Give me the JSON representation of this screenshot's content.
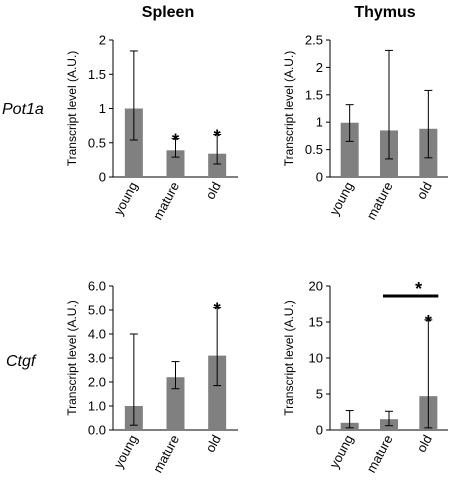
{
  "columns": [
    "Spleen",
    "Thymus"
  ],
  "rows": [
    "Pot1a",
    "Ctgf"
  ],
  "chart_data": [
    {
      "type": "bar",
      "column": "Spleen",
      "row": "Pot1a",
      "categories": [
        "young",
        "mature",
        "old"
      ],
      "values": [
        1.0,
        0.39,
        0.34
      ],
      "error_upper": [
        1.84,
        0.56,
        0.62
      ],
      "error_lower": [
        0.54,
        0.29,
        0.19
      ],
      "ylabel": "Transcript level (A.U.)",
      "ylim": [
        0,
        2
      ],
      "yticks": [
        0,
        0.5,
        1,
        1.5,
        2
      ],
      "ytick_labels": [
        "0",
        "0.5",
        "1",
        "1.5",
        "2"
      ],
      "significance": [
        "",
        "*",
        "*"
      ],
      "bar_color": "#808080"
    },
    {
      "type": "bar",
      "column": "Thymus",
      "row": "Pot1a",
      "categories": [
        "young",
        "mature",
        "old"
      ],
      "values": [
        0.99,
        0.85,
        0.88
      ],
      "error_upper": [
        1.32,
        2.31,
        1.58
      ],
      "error_lower": [
        0.65,
        0.33,
        0.35
      ],
      "ylabel": "Transcript level (A.U.)",
      "ylim": [
        0,
        2.5
      ],
      "yticks": [
        0,
        0.5,
        1,
        1.5,
        2,
        2.5
      ],
      "ytick_labels": [
        "0",
        "0.5",
        "1",
        "1.5",
        "2",
        "2.5"
      ],
      "significance": [
        "",
        "",
        ""
      ],
      "bar_color": "#808080"
    },
    {
      "type": "bar",
      "column": "Spleen",
      "row": "Ctgf",
      "categories": [
        "young",
        "mature",
        "old"
      ],
      "values": [
        1.0,
        2.2,
        3.1
      ],
      "error_upper": [
        4.0,
        2.85,
        5.1
      ],
      "error_lower": [
        0.2,
        1.72,
        1.85
      ],
      "ylabel": "Transcript level (A.U.)",
      "ylim": [
        0,
        6
      ],
      "yticks": [
        0,
        1,
        2,
        3,
        4,
        5,
        6
      ],
      "ytick_labels": [
        "0.0",
        "1.0",
        "2.0",
        "3.0",
        "4.0",
        "5.0",
        "6.0"
      ],
      "significance": [
        "",
        "",
        "*"
      ],
      "bar_color": "#808080"
    },
    {
      "type": "bar",
      "column": "Thymus",
      "row": "Ctgf",
      "categories": [
        "young",
        "mature",
        "old"
      ],
      "values": [
        1.0,
        1.5,
        4.7
      ],
      "error_upper": [
        2.7,
        2.6,
        15.3
      ],
      "error_lower": [
        0.3,
        0.6,
        0.3
      ],
      "ylabel": "Transcript level (A.U.)",
      "ylim": [
        0,
        20
      ],
      "yticks": [
        0,
        5,
        10,
        15,
        20
      ],
      "ytick_labels": [
        "0",
        "5",
        "10",
        "15",
        "20"
      ],
      "significance": [
        "",
        "",
        "*"
      ],
      "comparison": {
        "from": 1,
        "to": 2,
        "label": "*"
      },
      "bar_color": "#808080"
    }
  ]
}
